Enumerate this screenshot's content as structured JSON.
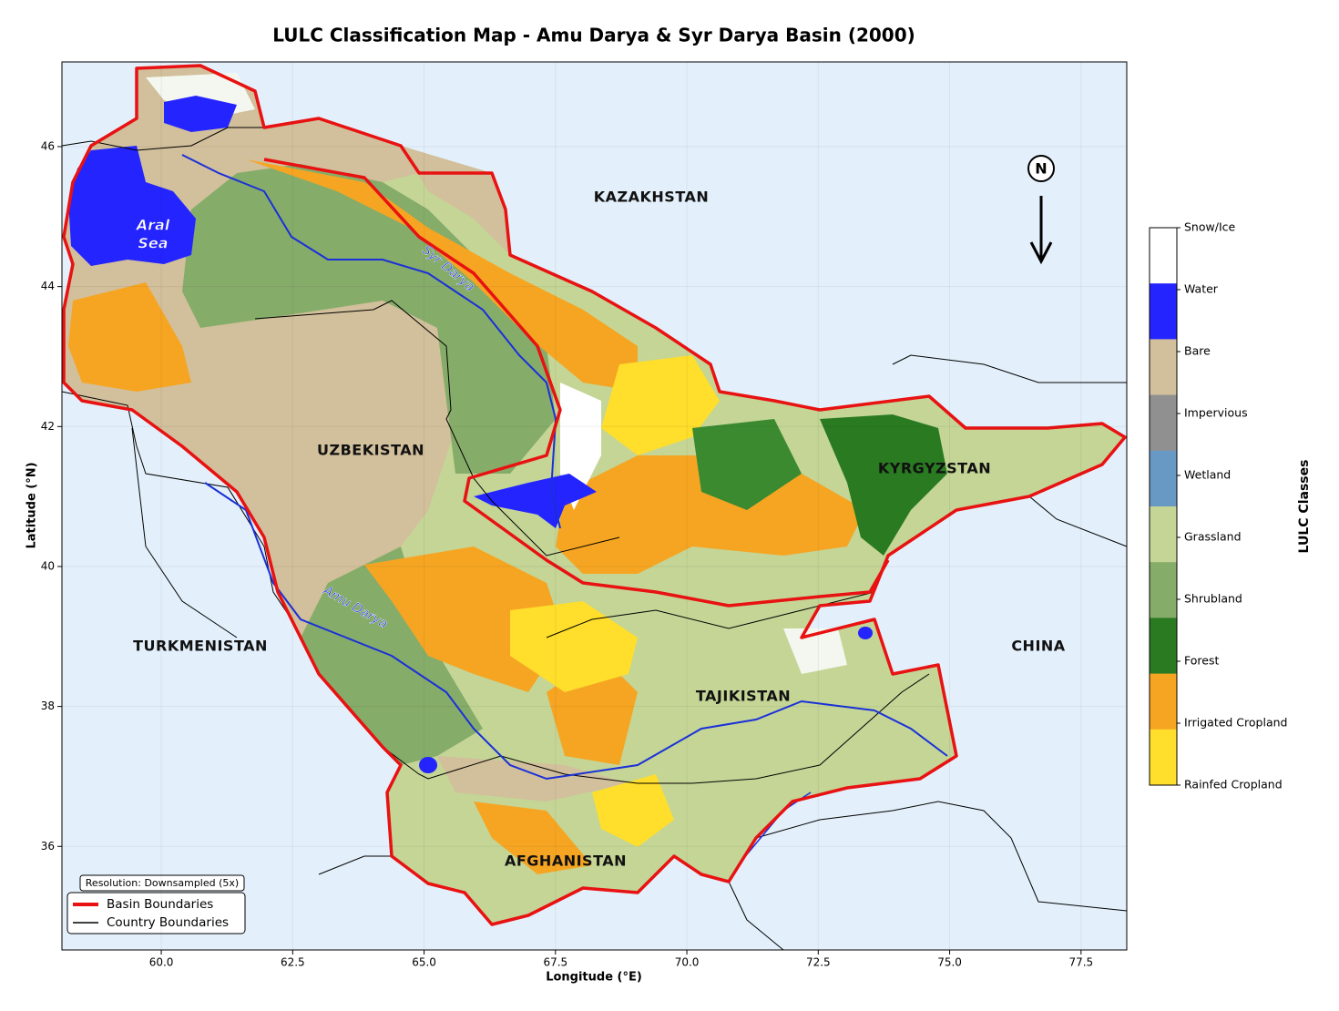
{
  "map": {
    "title": "LULC Classification Map - Amu Darya & Syr Darya Basin (2000)",
    "xlabel": "Longitude (°E)",
    "ylabel": "Latitude (°N)",
    "xlim": [
      58.11,
      78.37
    ],
    "ylim": [
      34.52,
      47.21
    ],
    "xticks": [
      {
        "value": 60,
        "label": "60.0"
      },
      62.5,
      {
        "value": 65,
        "label": "65.0"
      },
      67.5,
      {
        "value": 70,
        "label": "70.0"
      },
      72.5,
      {
        "value": 75,
        "label": "75.0"
      },
      77.5
    ],
    "yticks": [
      36,
      38,
      40,
      42,
      44,
      46
    ],
    "countries": [
      "KAZAKHSTAN",
      "UZBEKISTAN",
      "KYRGYZSTAN",
      "TURKMENISTAN",
      "TAJIKISTAN",
      "CHINA",
      "AFGHANISTAN"
    ],
    "lake_label": [
      "Aral",
      "Sea"
    ],
    "rivers": [
      "Syr Darya",
      "Amu Darya"
    ],
    "north": "N",
    "resolution_note": "Resolution: Downsampled (5x)",
    "legend": [
      {
        "name": "Basin Boundaries",
        "color": "#e81212"
      },
      {
        "name": "Country Boundaries",
        "color": "#000000"
      }
    ],
    "colorbar": {
      "label": "LULC Classes",
      "classes": [
        {
          "name": "Snow/Ice",
          "color": "#ffffff"
        },
        {
          "name": "Water",
          "color": "#2424ff"
        },
        {
          "name": "Bare",
          "color": "#d2bf9b"
        },
        {
          "name": "Impervious",
          "color": "#909090"
        },
        {
          "name": "Wetland",
          "color": "#6898c4"
        },
        {
          "name": "Grassland",
          "color": "#c4d596"
        },
        {
          "name": "Shrubland",
          "color": "#86ac6a"
        },
        {
          "name": "Forest",
          "color": "#2a7a22"
        },
        {
          "name": "Irrigated Cropland",
          "color": "#f6a522"
        },
        {
          "name": "Rainfed Cropland",
          "color": "#ffde2c"
        }
      ]
    }
  }
}
